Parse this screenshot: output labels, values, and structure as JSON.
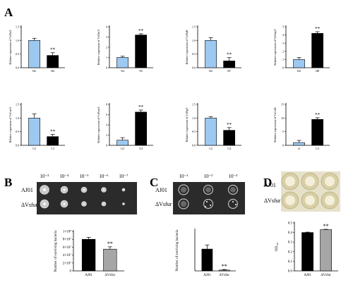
{
  "panels": {
    "A": "A",
    "B": "B",
    "C": "C",
    "D": "D"
  },
  "colors": {
    "blue": "#9cc9f2",
    "black": "#000000",
    "grey": "#a6a6a6",
    "plate_dark": "#2b2b2b"
  },
  "chart_data": [
    {
      "panel": "A",
      "type": "bar",
      "ylabel": "Relative expression of VsFlaA",
      "categories": [
        "H2",
        "H4"
      ],
      "values": [
        1.0,
        0.45
      ],
      "errors": [
        0.08,
        0.1
      ],
      "colors": [
        "blue",
        "black"
      ],
      "ylim": [
        0,
        1.5
      ],
      "yticks": [
        "0.0",
        "0.5",
        "1.0",
        "1.5"
      ],
      "significance": "**"
    },
    {
      "panel": "A",
      "type": "bar",
      "ylabel": "Relative expression of VsCheA",
      "categories": [
        "N4",
        "N5"
      ],
      "values": [
        1.0,
        3.2
      ],
      "errors": [
        0.12,
        0.12
      ],
      "colors": [
        "blue",
        "black"
      ],
      "ylim": [
        0,
        4
      ],
      "yticks": [
        "0",
        "1",
        "2",
        "3",
        "4"
      ],
      "significance": "**"
    },
    {
      "panel": "A",
      "type": "bar",
      "ylabel": "Relative expression of VsFlaB",
      "categories": [
        "H2",
        "H7"
      ],
      "values": [
        1.0,
        0.25
      ],
      "errors": [
        0.1,
        0.12
      ],
      "colors": [
        "blue",
        "black"
      ],
      "ylim": [
        0,
        1.5
      ],
      "yticks": [
        "0.0",
        "0.5",
        "1.0",
        "1.5"
      ],
      "significance": "**"
    },
    {
      "panel": "A",
      "type": "bar",
      "ylabel": "Relative expression of VsOmpT",
      "categories": [
        "H2",
        "H8"
      ],
      "values": [
        1.0,
        4.2
      ],
      "errors": [
        0.25,
        0.2
      ],
      "colors": [
        "blue",
        "black"
      ],
      "ylim": [
        0,
        5
      ],
      "yticks": [
        "0",
        "1",
        "2",
        "3",
        "4",
        "5"
      ],
      "significance": "**"
    },
    {
      "panel": "A",
      "type": "bar",
      "ylabel": "Relative expression of VsCueA",
      "categories": [
        "C2",
        "C3"
      ],
      "values": [
        1.0,
        0.32
      ],
      "errors": [
        0.15,
        0.08
      ],
      "colors": [
        "blue",
        "black"
      ],
      "ylim": [
        0,
        1.5
      ],
      "yticks": [
        "0.0",
        "0.5",
        "1.0",
        "1.5"
      ],
      "significance": "**"
    },
    {
      "panel": "A",
      "type": "bar",
      "ylabel": "Relative expression of VsPomA",
      "categories": [
        "U2",
        "U3"
      ],
      "values": [
        1.0,
        6.5
      ],
      "errors": [
        0.5,
        0.4
      ],
      "colors": [
        "blue",
        "black"
      ],
      "ylim": [
        0,
        8
      ],
      "yticks": [
        "0",
        "2",
        "4",
        "6",
        "8"
      ],
      "significance": "**"
    },
    {
      "panel": "A",
      "type": "bar",
      "ylabel": "Relative expression of VsFlgT",
      "categories": [
        "C2",
        "C4"
      ],
      "values": [
        1.0,
        0.55
      ],
      "errors": [
        0.05,
        0.1
      ],
      "colors": [
        "blue",
        "black"
      ],
      "ylim": [
        0,
        1.5
      ],
      "yticks": [
        "0.0",
        "0.5",
        "1.0",
        "1.5"
      ],
      "significance": "**"
    },
    {
      "panel": "A",
      "type": "bar",
      "ylabel": "Relative expression of VsCsrB",
      "categories": [
        "t2",
        "C3"
      ],
      "values": [
        1.0,
        9.5
      ],
      "errors": [
        0.8,
        0.6
      ],
      "colors": [
        "blue",
        "black"
      ],
      "ylim": [
        0,
        15
      ],
      "yticks": [
        "0",
        "5",
        "10",
        "15"
      ],
      "significance": "**"
    },
    {
      "panel": "B",
      "type": "bar",
      "ylabel": "Number of surviving bacteria",
      "categories": [
        "AJ01",
        "ΔVsfur"
      ],
      "values": [
        80000000.0,
        55000000.0
      ],
      "errors": [
        5000000.0,
        6000000.0
      ],
      "colors": [
        "black",
        "grey"
      ],
      "ylim": [
        0,
        100000000.0
      ],
      "yticks": [
        "0",
        "2×10⁷",
        "4×10⁷",
        "6×10⁷",
        "8×10⁷",
        "1×10⁸"
      ],
      "significance": "**"
    },
    {
      "panel": "C",
      "type": "bar",
      "ylabel": "Number of surviving bacteria",
      "categories": [
        "AJ01",
        "ΔVsfur"
      ],
      "values": [
        80,
        3
      ],
      "errors": [
        15,
        2
      ],
      "colors": [
        "black",
        "grey"
      ],
      "ylim": [
        0,
        150
      ],
      "yticks": [],
      "significance": "**"
    },
    {
      "panel": "D",
      "type": "bar",
      "ylabel": "OD₅₉₀",
      "categories": [
        "AJ01",
        "ΔVsfur"
      ],
      "values": [
        0.4,
        0.43
      ],
      "errors": [
        0.004,
        0.004
      ],
      "colors": [
        "black",
        "grey"
      ],
      "ylim": [
        0.0,
        0.5
      ],
      "yticks": [
        "0.0",
        "0.1",
        "0.2",
        "0.3",
        "0.4",
        "0.5"
      ],
      "significance": "**"
    }
  ],
  "plateB": {
    "dilutions": [
      "10⁻³",
      "10⁻⁴",
      "10⁻⁵",
      "10⁻⁶",
      "10⁻⁷"
    ],
    "rows": [
      "AJ01",
      "ΔVsfur"
    ]
  },
  "plateC": {
    "dilutions": [
      "10⁻¹",
      "10⁻²",
      "10⁻³"
    ],
    "rows": [
      "AJ01",
      "ΔVsfur"
    ]
  },
  "plateD": {
    "rows": [
      "AJ01",
      "ΔVsfur"
    ]
  }
}
